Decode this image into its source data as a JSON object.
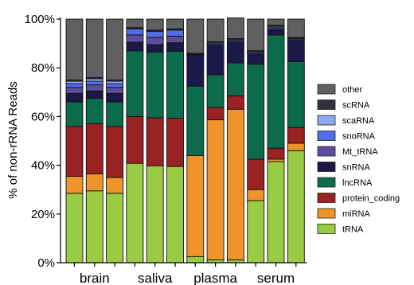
{
  "chart_data": {
    "type": "bar",
    "stacked": true,
    "ylabel": "% of non-rRNA Reads",
    "xlabel": "",
    "ylim": [
      0,
      100
    ],
    "yticks": [
      "0%",
      "20%",
      "40%",
      "60%",
      "80%",
      "100%"
    ],
    "group_labels": [
      "brain",
      "saliva",
      "plasma",
      "serum"
    ],
    "groups_per_bar": [
      "brain",
      "brain",
      "brain",
      "saliva",
      "saliva",
      "saliva",
      "plasma",
      "plasma",
      "plasma",
      "serum",
      "serum",
      "serum"
    ],
    "legend_placement": "right",
    "series": [
      {
        "name": "tRNA",
        "color": "#99cc44",
        "values": [
          28.5,
          29.5,
          28.5,
          40.8,
          39.8,
          39.5,
          2.5,
          1.2,
          1.2,
          25.5,
          41.5,
          46.0
        ]
      },
      {
        "name": "miRNA",
        "color": "#ee9429",
        "values": [
          7.0,
          7.0,
          6.5,
          0.0,
          0.0,
          0.0,
          41.5,
          57.5,
          61.8,
          4.5,
          1.0,
          3.0
        ]
      },
      {
        "name": "protein_coding",
        "color": "#992222",
        "values": [
          20.5,
          20.5,
          21.0,
          19.2,
          19.7,
          19.8,
          0.0,
          5.0,
          5.5,
          12.5,
          4.5,
          6.5
        ]
      },
      {
        "name": "lncRNA",
        "color": "#0c6b4c",
        "values": [
          10.0,
          10.5,
          10.0,
          27.0,
          27.0,
          27.5,
          28.5,
          13.5,
          13.5,
          39.0,
          46.5,
          27.0
        ]
      },
      {
        "name": "snRNA",
        "color": "#1c1848",
        "values": [
          3.5,
          3.0,
          3.5,
          3.5,
          3.0,
          3.5,
          13.0,
          12.0,
          8.5,
          4.5,
          2.0,
          9.0
        ]
      },
      {
        "name": "Mt_tRNA",
        "color": "#5e4c9c",
        "values": [
          2.5,
          2.5,
          2.5,
          3.0,
          3.0,
          2.7,
          0.0,
          0.5,
          0.5,
          0.0,
          0.5,
          0.5
        ]
      },
      {
        "name": "snoRNA",
        "color": "#4f6ee8",
        "values": [
          1.5,
          1.5,
          1.5,
          2.5,
          2.5,
          2.5,
          0.0,
          0.5,
          0.5,
          0.0,
          0.5,
          0.0
        ]
      },
      {
        "name": "scaRNA",
        "color": "#8ea8f4",
        "values": [
          1.0,
          1.0,
          1.0,
          0.0,
          0.0,
          0.0,
          0.0,
          0.0,
          0.0,
          0.5,
          0.5,
          0.0
        ]
      },
      {
        "name": "scRNA",
        "color": "#32323c",
        "values": [
          0.5,
          0.5,
          0.5,
          0.5,
          0.5,
          0.5,
          0.5,
          0.5,
          0.5,
          0.5,
          0.5,
          0.5
        ]
      },
      {
        "name": "other",
        "color": "#606060",
        "values": [
          25.0,
          24.0,
          25.0,
          3.5,
          4.5,
          4.0,
          14.0,
          9.3,
          8.5,
          13.0,
          2.5,
          7.5
        ]
      }
    ],
    "legend_order": [
      "other",
      "scRNA",
      "scaRNA",
      "snoRNA",
      "Mt_tRNA",
      "snRNA",
      "lncRNA",
      "protein_coding",
      "miRNA",
      "tRNA"
    ]
  }
}
